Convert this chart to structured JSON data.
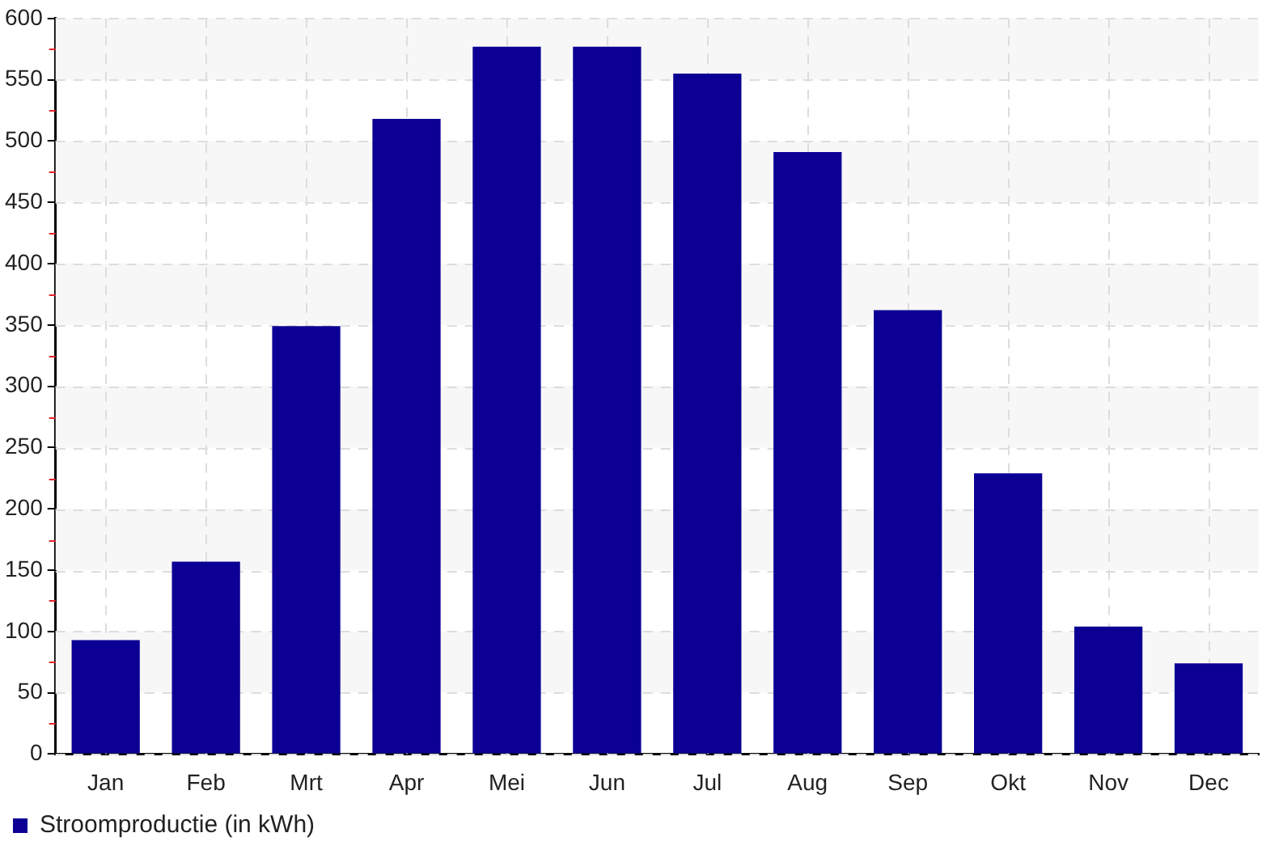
{
  "chart_data": {
    "type": "bar",
    "categories": [
      "Jan",
      "Feb",
      "Mrt",
      "Apr",
      "Mei",
      "Jun",
      "Jul",
      "Aug",
      "Sep",
      "Okt",
      "Nov",
      "Dec"
    ],
    "series": [
      {
        "name": "Stroomproductie (in kWh)",
        "color": "#0c0094",
        "values": [
          93,
          157,
          349,
          518,
          577,
          577,
          555,
          491,
          362,
          229,
          104,
          74
        ]
      }
    ],
    "ylim": [
      0,
      600
    ],
    "yticks": [
      0,
      50,
      100,
      150,
      200,
      250,
      300,
      350,
      400,
      450,
      500,
      550,
      600
    ],
    "grid": true,
    "legend": "bottom left"
  }
}
